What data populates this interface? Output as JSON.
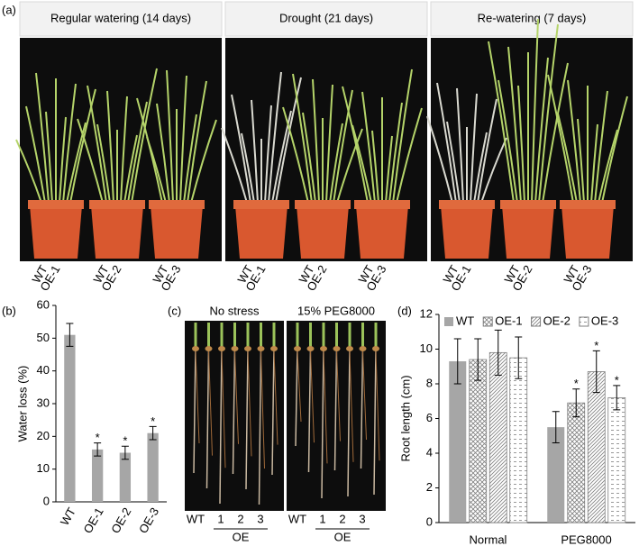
{
  "panel_labels": [
    "(a)",
    "(b)",
    "(c)",
    "(d)"
  ],
  "photo_panels": {
    "headers": [
      "Regular watering (14 days)",
      "Drought (21 days)",
      "Re-watering (7 days)"
    ],
    "pot_labels": [
      [
        "WT",
        "OE-1"
      ],
      [
        "WT",
        "OE-2"
      ],
      [
        "WT",
        "OE-3"
      ]
    ]
  },
  "root_photos": {
    "titles": [
      "No stress",
      "15% PEG8000"
    ],
    "lanes": [
      "WT",
      "1",
      "2",
      "3"
    ],
    "group": "OE"
  },
  "chart_data": [
    {
      "type": "bar",
      "ylabel": "Water loss (%)",
      "categories": [
        "WT",
        "OE-1",
        "OE-2",
        "OE-3"
      ],
      "values": [
        51,
        16,
        15,
        21
      ],
      "errors": [
        3.5,
        2,
        2,
        2
      ],
      "significance": [
        null,
        "*",
        "*",
        "*"
      ],
      "color": "#a6a6a6",
      "ylim": [
        0,
        60
      ],
      "yticks": [
        0,
        10,
        20,
        30,
        40,
        50,
        60
      ]
    },
    {
      "type": "grouped_bar",
      "ylabel": "Root length (cm)",
      "categories": [
        "Normal",
        "PEG8000"
      ],
      "series": [
        {
          "name": "WT",
          "color": "#a6a6a6",
          "pattern": "solid",
          "values": [
            9.3,
            5.5
          ],
          "errors": [
            1.3,
            0.9
          ],
          "significance": [
            null,
            null
          ]
        },
        {
          "name": "OE-1",
          "color": "#7f7f7f",
          "pattern": "crosshatch",
          "values": [
            9.4,
            6.9
          ],
          "errors": [
            1.2,
            0.8
          ],
          "significance": [
            null,
            "*"
          ]
        },
        {
          "name": "OE-2",
          "color": "#7f7f7f",
          "pattern": "diagonal",
          "values": [
            9.8,
            8.7
          ],
          "errors": [
            1.3,
            1.2
          ],
          "significance": [
            null,
            "*"
          ]
        },
        {
          "name": "OE-3",
          "color": "#7f7f7f",
          "pattern": "dash",
          "values": [
            9.5,
            7.2
          ],
          "errors": [
            1.2,
            0.7
          ],
          "significance": [
            null,
            "*"
          ]
        }
      ],
      "ylim": [
        0,
        12
      ],
      "yticks": [
        0,
        2,
        4,
        6,
        8,
        10,
        12
      ],
      "legend": "top"
    }
  ]
}
